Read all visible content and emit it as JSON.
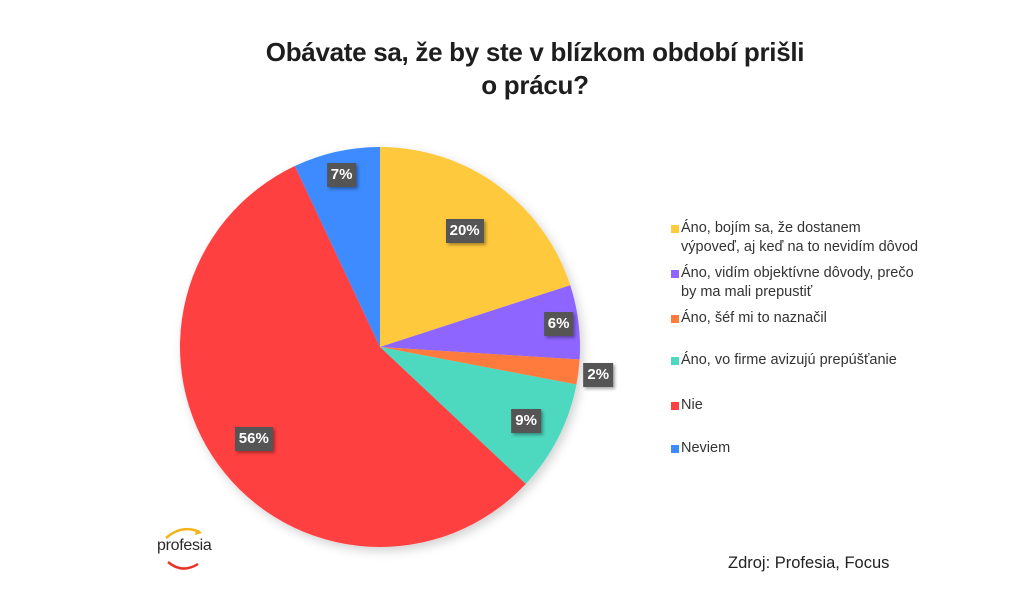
{
  "chart_data": {
    "type": "pie",
    "title": "Obávate sa, že by ste v blízkom období prišli o prácu?",
    "title_lines": [
      "Obávate sa, že by ste v blízkom období prišli",
      "o prácu?"
    ],
    "categories": [
      "Áno, bojím sa, že dostanem výpoveď, aj keď na to nevidím dôvod",
      "Áno, vidím objektívne dôvody, prečo by ma mali prepustiť",
      "Áno, šéf mi to naznačil",
      "Áno, vo firme avizujú prepúšťanie",
      "Nie",
      "Neviem"
    ],
    "values": [
      20,
      6,
      2,
      9,
      56,
      7
    ],
    "value_labels": [
      "20%",
      "6%",
      "2%",
      "9%",
      "56%",
      "7%"
    ],
    "colors": [
      "#FFC93C",
      "#8E66FF",
      "#FF7A3D",
      "#4DD9BF",
      "#FF4040",
      "#3D8BFF"
    ],
    "start_angle": "12 o'clock, clockwise",
    "legend_position": "right",
    "xlabel": "",
    "ylabel": ""
  },
  "legend": [
    {
      "text": "Áno, bojím sa, že dostanem\nvýpoveď, aj keď na to nevidím dôvod",
      "color": "#FFC93C"
    },
    {
      "text": "Áno, vidím objektívne dôvody, prečo\nby ma mali prepustiť",
      "color": "#8E66FF"
    },
    {
      "text": "Áno, šéf mi to naznačil",
      "color": "#FF7A3D"
    },
    {
      "text": "Áno, vo firme avizujú prepúšťanie",
      "color": "#4DD9BF"
    },
    {
      "text": "Nie",
      "color": "#FF4040"
    },
    {
      "text": "Neviem",
      "color": "#3D8BFF"
    }
  ],
  "logo": {
    "text": "profesia"
  },
  "source": "Zdroj: Profesia, Focus"
}
